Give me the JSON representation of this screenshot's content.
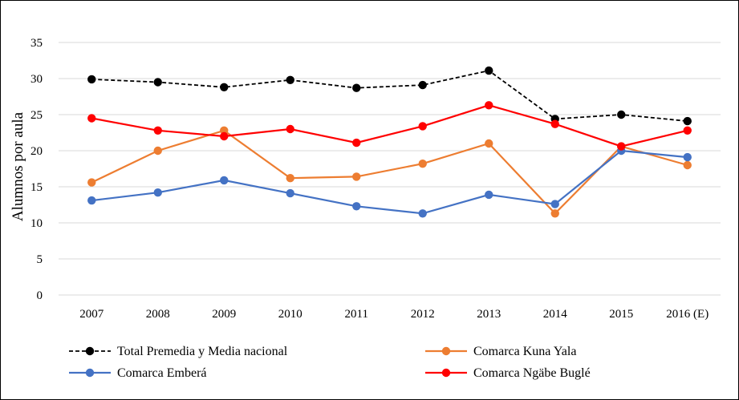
{
  "chart_data": {
    "type": "line",
    "title": "",
    "xlabel": "",
    "ylabel": "Alumnos por aula",
    "ylim": [
      0,
      35
    ],
    "yticks": [
      0,
      5,
      10,
      15,
      20,
      25,
      30,
      35
    ],
    "grid": "horizontal",
    "legend_position": "bottom",
    "categories": [
      "2007",
      "2008",
      "2009",
      "2010",
      "2011",
      "2012",
      "2013",
      "2014",
      "2015",
      "2016 (E)"
    ],
    "series": [
      {
        "name": "Total Premedia y Media nacional",
        "color": "#000000",
        "dashed": true,
        "values": [
          29.9,
          29.5,
          28.8,
          29.8,
          28.7,
          29.1,
          31.1,
          24.4,
          25.0,
          24.1
        ]
      },
      {
        "name": "Comarca  Kuna Yala",
        "color": "#ED7D31",
        "dashed": false,
        "values": [
          15.6,
          20.0,
          22.8,
          16.2,
          16.4,
          18.2,
          21.0,
          11.3,
          20.6,
          18.0
        ]
      },
      {
        "name": "Comarca Emberá",
        "color": "#4472C4",
        "dashed": false,
        "values": [
          13.1,
          14.2,
          15.9,
          14.1,
          12.3,
          11.3,
          13.9,
          12.6,
          20.0,
          19.1
        ]
      },
      {
        "name": "Comarca  Ngäbe Buglé",
        "color": "#FF0000",
        "dashed": false,
        "values": [
          24.5,
          22.8,
          22.0,
          23.0,
          21.1,
          23.4,
          26.3,
          23.7,
          20.6,
          22.8
        ]
      }
    ]
  }
}
